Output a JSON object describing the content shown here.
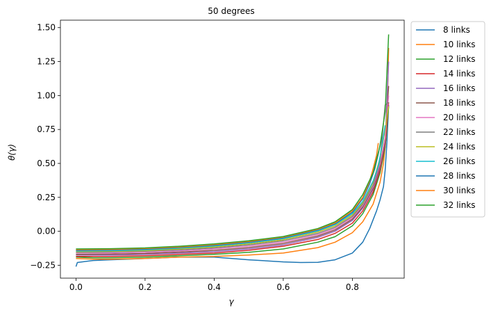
{
  "chart_data": {
    "type": "line",
    "title": "50 degrees",
    "xlabel": "γ",
    "ylabel": "θ(γ)",
    "xlim": [
      -0.045,
      0.95
    ],
    "ylim": [
      -0.345,
      1.555
    ],
    "xticks": [
      0.0,
      0.2,
      0.4,
      0.6,
      0.8
    ],
    "xtick_labels": [
      "0.0",
      "0.2",
      "0.4",
      "0.6",
      "0.8"
    ],
    "yticks": [
      -0.25,
      0.0,
      0.25,
      0.5,
      0.75,
      1.0,
      1.25,
      1.5
    ],
    "ytick_labels": [
      "−0.25",
      "0.00",
      "0.25",
      "0.50",
      "0.75",
      "1.00",
      "1.25",
      "1.50"
    ],
    "grid": false,
    "legend_position": "outside-right",
    "series": [
      {
        "name": "8 links",
        "color": "#1f77b4",
        "x": [
          0.0,
          0.004,
          0.05,
          0.1,
          0.2,
          0.3,
          0.4,
          0.5,
          0.6,
          0.65,
          0.7,
          0.75,
          0.8,
          0.83,
          0.85,
          0.87,
          0.88,
          0.89,
          0.895,
          0.9,
          0.905
        ],
        "y": [
          -0.26,
          -0.23,
          -0.215,
          -0.21,
          -0.2,
          -0.19,
          -0.19,
          -0.21,
          -0.225,
          -0.23,
          -0.228,
          -0.21,
          -0.16,
          -0.08,
          0.02,
          0.15,
          0.23,
          0.33,
          0.45,
          0.65,
          0.93
        ]
      },
      {
        "name": "10 links",
        "color": "#ff7f0e",
        "x": [
          0.0,
          0.05,
          0.1,
          0.2,
          0.3,
          0.4,
          0.5,
          0.6,
          0.7,
          0.75,
          0.8,
          0.83,
          0.86,
          0.88,
          0.89,
          0.9,
          0.905
        ],
        "y": [
          -0.2,
          -0.205,
          -0.205,
          -0.2,
          -0.19,
          -0.185,
          -0.175,
          -0.16,
          -0.12,
          -0.08,
          -0.01,
          0.07,
          0.2,
          0.36,
          0.5,
          0.75,
          1.35
        ]
      },
      {
        "name": "12 links",
        "color": "#2ca02c",
        "x": [
          0.0,
          0.05,
          0.1,
          0.2,
          0.3,
          0.4,
          0.5,
          0.6,
          0.7,
          0.75,
          0.8,
          0.83,
          0.86,
          0.88,
          0.895,
          0.905
        ],
        "y": [
          -0.19,
          -0.195,
          -0.195,
          -0.19,
          -0.18,
          -0.17,
          -0.155,
          -0.13,
          -0.08,
          -0.04,
          0.04,
          0.13,
          0.27,
          0.43,
          0.62,
          0.92
        ]
      },
      {
        "name": "14 links",
        "color": "#d62728",
        "x": [
          0.0,
          0.1,
          0.2,
          0.3,
          0.4,
          0.5,
          0.6,
          0.7,
          0.75,
          0.8,
          0.83,
          0.86,
          0.88,
          0.895,
          0.905
        ],
        "y": [
          -0.185,
          -0.185,
          -0.18,
          -0.17,
          -0.16,
          -0.14,
          -0.11,
          -0.06,
          -0.015,
          0.06,
          0.15,
          0.29,
          0.45,
          0.64,
          0.95
        ]
      },
      {
        "name": "16 links",
        "color": "#9467bd",
        "x": [
          0.0,
          0.1,
          0.2,
          0.3,
          0.4,
          0.5,
          0.6,
          0.7,
          0.75,
          0.8,
          0.83,
          0.86,
          0.88,
          0.895,
          0.905
        ],
        "y": [
          -0.175,
          -0.175,
          -0.17,
          -0.16,
          -0.15,
          -0.13,
          -0.1,
          -0.045,
          0.0,
          0.08,
          0.17,
          0.31,
          0.47,
          0.66,
          1.25
        ]
      },
      {
        "name": "18 links",
        "color": "#8c564b",
        "x": [
          0.0,
          0.1,
          0.2,
          0.3,
          0.4,
          0.5,
          0.6,
          0.7,
          0.75,
          0.8,
          0.83,
          0.86,
          0.88,
          0.895,
          0.905
        ],
        "y": [
          -0.17,
          -0.168,
          -0.163,
          -0.153,
          -0.14,
          -0.12,
          -0.09,
          -0.035,
          0.01,
          0.09,
          0.18,
          0.32,
          0.48,
          0.67,
          1.07
        ]
      },
      {
        "name": "20 links",
        "color": "#e377c2",
        "x": [
          0.0,
          0.1,
          0.2,
          0.3,
          0.4,
          0.5,
          0.6,
          0.7,
          0.75,
          0.8,
          0.83,
          0.86,
          0.88,
          0.895,
          0.905
        ],
        "y": [
          -0.16,
          -0.16,
          -0.155,
          -0.145,
          -0.13,
          -0.11,
          -0.08,
          -0.025,
          0.02,
          0.1,
          0.19,
          0.33,
          0.5,
          0.69,
          1.0
        ]
      },
      {
        "name": "22 links",
        "color": "#7f7f7f",
        "x": [
          0.0,
          0.1,
          0.2,
          0.3,
          0.4,
          0.5,
          0.6,
          0.7,
          0.75,
          0.8,
          0.83,
          0.86,
          0.88,
          0.895,
          0.905
        ],
        "y": [
          -0.155,
          -0.152,
          -0.147,
          -0.137,
          -0.122,
          -0.1,
          -0.07,
          -0.015,
          0.03,
          0.11,
          0.2,
          0.34,
          0.52,
          0.93,
          0.95
        ]
      },
      {
        "name": "24 links",
        "color": "#bcbd22",
        "x": [
          0.0,
          0.1,
          0.2,
          0.3,
          0.4,
          0.5,
          0.6,
          0.7,
          0.75,
          0.8,
          0.83,
          0.86,
          0.88,
          0.895,
          0.905
        ],
        "y": [
          -0.15,
          -0.147,
          -0.142,
          -0.13,
          -0.115,
          -0.093,
          -0.062,
          -0.005,
          0.04,
          0.12,
          0.21,
          0.36,
          0.54,
          0.75,
          0.92
        ]
      },
      {
        "name": "26 links",
        "color": "#17becf",
        "x": [
          0.0,
          0.1,
          0.2,
          0.3,
          0.4,
          0.5,
          0.6,
          0.7,
          0.75,
          0.8,
          0.83,
          0.86,
          0.875,
          0.885,
          0.895
        ],
        "y": [
          -0.145,
          -0.142,
          -0.136,
          -0.124,
          -0.108,
          -0.085,
          -0.054,
          0.003,
          0.05,
          0.13,
          0.22,
          0.37,
          0.48,
          0.62,
          0.78
        ]
      },
      {
        "name": "28 links",
        "color": "#1f77b4",
        "x": [
          0.0,
          0.1,
          0.2,
          0.3,
          0.4,
          0.5,
          0.6,
          0.7,
          0.75,
          0.8,
          0.83,
          0.85,
          0.865,
          0.875,
          0.885
        ],
        "y": [
          -0.14,
          -0.137,
          -0.131,
          -0.119,
          -0.103,
          -0.08,
          -0.048,
          0.01,
          0.056,
          0.14,
          0.24,
          0.35,
          0.46,
          0.57,
          0.7
        ]
      },
      {
        "name": "30 links",
        "color": "#ff7f0e",
        "x": [
          0.0,
          0.1,
          0.2,
          0.3,
          0.4,
          0.5,
          0.6,
          0.7,
          0.75,
          0.8,
          0.83,
          0.85,
          0.86,
          0.87,
          0.875
        ],
        "y": [
          -0.135,
          -0.133,
          -0.127,
          -0.115,
          -0.098,
          -0.075,
          -0.043,
          0.015,
          0.062,
          0.15,
          0.25,
          0.37,
          0.46,
          0.56,
          0.65
        ]
      },
      {
        "name": "32 links",
        "color": "#2ca02c",
        "x": [
          0.0,
          0.1,
          0.2,
          0.3,
          0.4,
          0.5,
          0.6,
          0.7,
          0.75,
          0.8,
          0.83,
          0.86,
          0.88,
          0.895,
          0.905
        ],
        "y": [
          -0.13,
          -0.128,
          -0.122,
          -0.11,
          -0.093,
          -0.07,
          -0.038,
          0.02,
          0.07,
          0.16,
          0.27,
          0.43,
          0.63,
          0.88,
          1.45
        ]
      }
    ]
  }
}
